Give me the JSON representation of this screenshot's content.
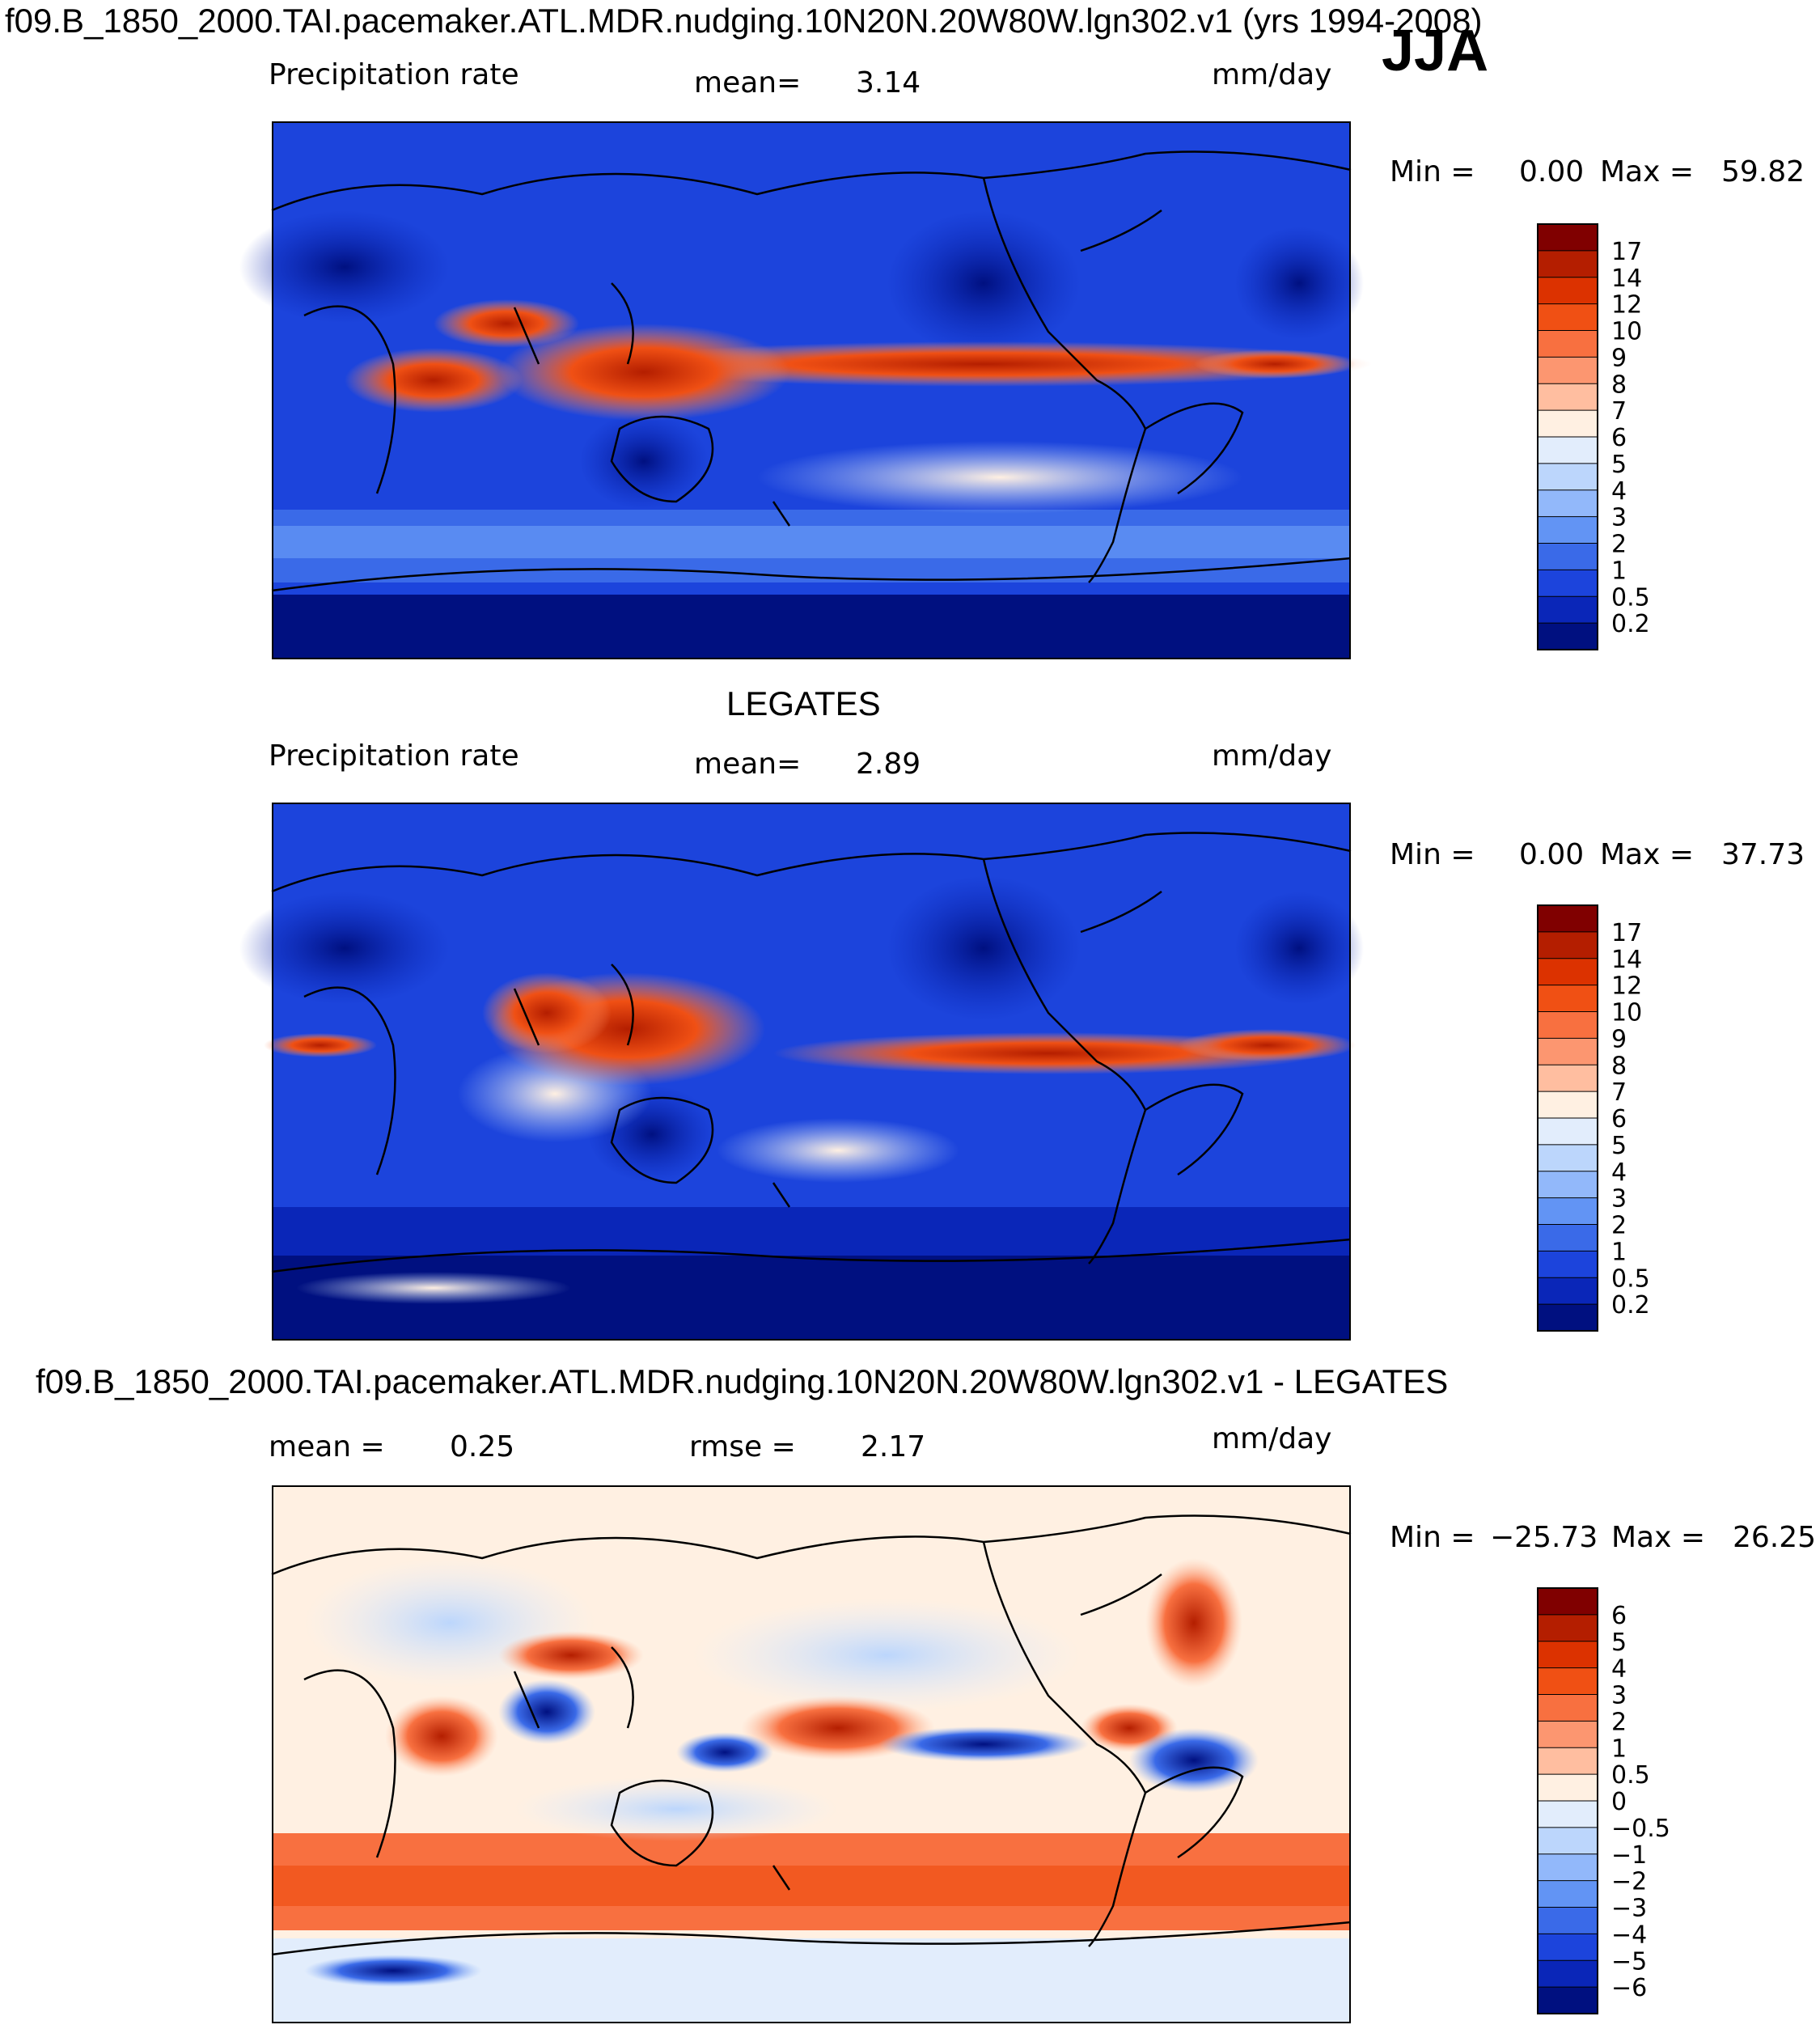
{
  "figure": {
    "suptitle": "f09.B_1850_2000.TAI.pacemaker.ATL.MDR.nudging.10N20N.20W80W.lgn302.v1 (yrs 1994-2008)",
    "season": "JJA"
  },
  "chart_data": [
    {
      "type": "heatmap",
      "panel_title": "",
      "variable": "Precipitation rate",
      "mean_label": "mean=",
      "mean_value": "3.14",
      "units": "mm/day",
      "min_label": "Min =",
      "min_value": "0.00",
      "max_label": "Max =",
      "max_value": "59.82",
      "colorbar_levels": [
        "17",
        "14",
        "12",
        "10",
        "9",
        "8",
        "7",
        "6",
        "5",
        "4",
        "3",
        "2",
        "1",
        "0.5",
        "0.2"
      ],
      "colorbar_colors": [
        "#800000",
        "#b41e00",
        "#dc3200",
        "#f05014",
        "#f87040",
        "#fc9670",
        "#ffbea0",
        "#fff0e2",
        "#e2edfc",
        "#bcd6fc",
        "#92b8fa",
        "#6294f4",
        "#3a6ae8",
        "#1c44dc",
        "#0a26b8",
        "#001080"
      ]
    },
    {
      "type": "heatmap",
      "panel_title": "LEGATES",
      "variable": "Precipitation rate",
      "mean_label": "mean=",
      "mean_value": "2.89",
      "units": "mm/day",
      "min_label": "Min =",
      "min_value": "0.00",
      "max_label": "Max =",
      "max_value": "37.73",
      "colorbar_levels": [
        "17",
        "14",
        "12",
        "10",
        "9",
        "8",
        "7",
        "6",
        "5",
        "4",
        "3",
        "2",
        "1",
        "0.5",
        "0.2"
      ],
      "colorbar_colors": [
        "#800000",
        "#b41e00",
        "#dc3200",
        "#f05014",
        "#f87040",
        "#fc9670",
        "#ffbea0",
        "#fff0e2",
        "#e2edfc",
        "#bcd6fc",
        "#92b8fa",
        "#6294f4",
        "#3a6ae8",
        "#1c44dc",
        "#0a26b8",
        "#001080"
      ]
    },
    {
      "type": "heatmap",
      "panel_title": "f09.B_1850_2000.TAI.pacemaker.ATL.MDR.nudging.10N20N.20W80W.lgn302.v1 - LEGATES",
      "mean_label": "mean =",
      "mean_value": "0.25",
      "rmse_label": "rmse =",
      "rmse_value": "2.17",
      "units": "mm/day",
      "min_label": "Min =",
      "min_value": "−25.73",
      "max_label": "Max =",
      "max_value": "26.25",
      "colorbar_levels": [
        "6",
        "5",
        "4",
        "3",
        "2",
        "1",
        "0.5",
        "0",
        "−0.5",
        "−1",
        "−2",
        "−3",
        "−4",
        "−5",
        "−6"
      ],
      "colorbar_colors": [
        "#800000",
        "#b41e00",
        "#dc3200",
        "#f05014",
        "#f87040",
        "#fc9670",
        "#ffbea0",
        "#fff0e2",
        "#e2edfc",
        "#bcd6fc",
        "#92b8fa",
        "#6294f4",
        "#3a6ae8",
        "#1c44dc",
        "#0a26b8",
        "#001080"
      ]
    }
  ]
}
